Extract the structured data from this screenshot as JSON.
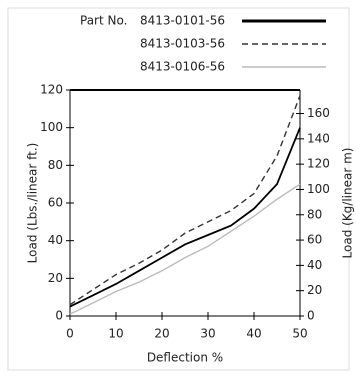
{
  "chart_data": {
    "type": "line",
    "legend_title": "Part No.",
    "x_label": "Deflection %",
    "y_label": "Load (Lbs./linear ft.)",
    "y2_label": "Load (Kg/linear m)",
    "x": [
      0,
      5,
      10,
      15,
      20,
      25,
      30,
      35,
      40,
      45,
      50
    ],
    "series": [
      {
        "name": "8413-0101-56",
        "color": "#000000",
        "dash": "solid",
        "values": [
          5,
          11,
          17,
          24,
          31,
          38,
          43,
          48,
          57,
          70,
          100
        ]
      },
      {
        "name": "8413-0103-56",
        "color": "#333333",
        "dash": "dashed",
        "values": [
          6,
          14,
          22,
          28,
          35,
          44,
          50,
          56,
          65,
          85,
          117
        ]
      },
      {
        "name": "8413-0106-56",
        "color": "#bbbbbb",
        "dash": "solid",
        "values": [
          1,
          7,
          13,
          18,
          24,
          31,
          37,
          45,
          53,
          62,
          70
        ]
      }
    ],
    "xlim": [
      0,
      50
    ],
    "xticks": [
      0,
      10,
      20,
      30,
      40,
      50
    ],
    "ylim": [
      0,
      120
    ],
    "yticks": [
      0,
      20,
      40,
      60,
      80,
      100,
      120
    ],
    "y2lim": [
      0,
      178.6
    ],
    "y2ticks": [
      0,
      20,
      40,
      60,
      80,
      100,
      120,
      140,
      160
    ]
  }
}
